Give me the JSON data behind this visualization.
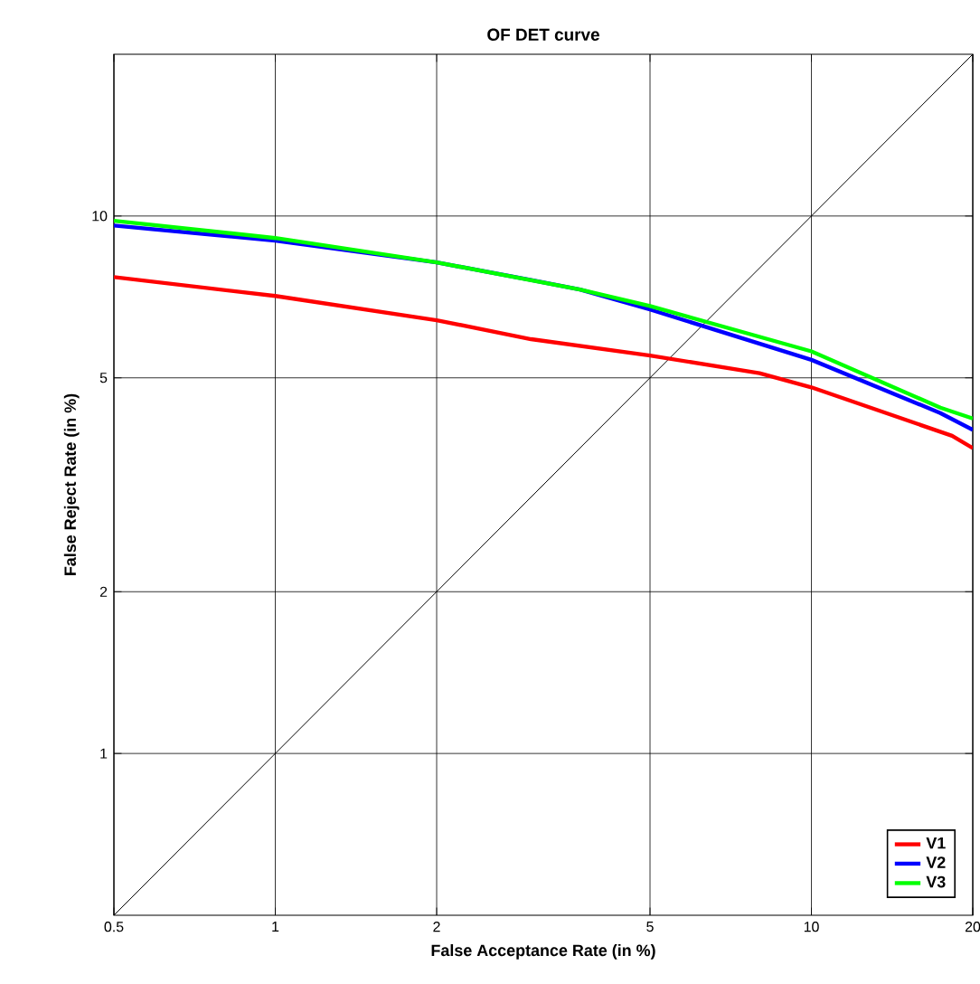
{
  "chart_data": {
    "type": "line",
    "title": "OF DET curve",
    "xlabel": "False Acceptance Rate (in %)",
    "ylabel": "False Reject Rate (in %)",
    "xlim": [
      0.5,
      20
    ],
    "ylim": [
      0.5,
      20
    ],
    "xticks": [
      0.5,
      1,
      2,
      5,
      10,
      20
    ],
    "yticks": [
      1,
      2,
      5,
      10
    ],
    "grid": true,
    "log": "xy",
    "legend": "bottom right",
    "line_style": "solid",
    "series": [
      {
        "color": "#000000",
        "x": [
          0.5,
          20
        ],
        "values": [
          0.5,
          20
        ]
      },
      {
        "name": "V1",
        "color": "#ff0000",
        "x": [
          0.5,
          1,
          2,
          3,
          5,
          8,
          10,
          18.3,
          20
        ],
        "values": [
          7.7,
          7.1,
          6.4,
          5.9,
          5.5,
          5.1,
          4.8,
          3.9,
          3.7
        ]
      },
      {
        "name": "V2",
        "color": "#0000ff",
        "x": [
          0.5,
          1,
          2,
          3,
          3.7,
          5,
          10,
          17.4,
          20
        ],
        "values": [
          9.6,
          9.0,
          8.2,
          7.6,
          7.3,
          6.7,
          5.4,
          4.3,
          4.0
        ]
      },
      {
        "name": "V3",
        "color": "#00ff00",
        "x": [
          0.5,
          1,
          2,
          3.7,
          5,
          10,
          17.4,
          20
        ],
        "values": [
          9.8,
          9.1,
          8.2,
          7.3,
          6.8,
          5.6,
          4.4,
          4.2
        ]
      }
    ]
  }
}
